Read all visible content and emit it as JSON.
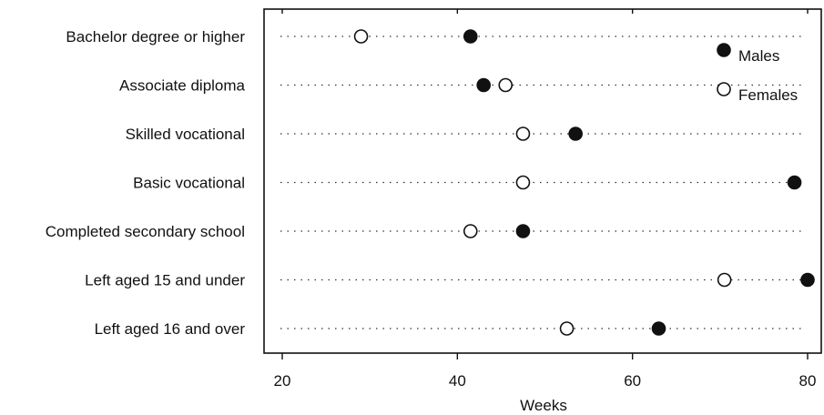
{
  "chart_data": {
    "type": "scatter",
    "title": "",
    "xlabel": "Weeks",
    "ylabel": "",
    "xlim": [
      18,
      82
    ],
    "xticks": [
      20,
      40,
      60,
      80
    ],
    "categories": [
      "Bachelor degree or higher",
      "Associate diploma",
      "Skilled vocational",
      "Basic vocational",
      "Completed secondary school",
      "Left aged 15 and under",
      "Left aged 16 and over"
    ],
    "series": [
      {
        "name": "Males",
        "marker": "filled-circle",
        "values": [
          41.5,
          43.0,
          53.5,
          78.5,
          47.5,
          80.0,
          63.0
        ]
      },
      {
        "name": "Females",
        "marker": "open-circle",
        "values": [
          29.0,
          45.5,
          47.5,
          47.5,
          41.5,
          70.5,
          52.5
        ]
      }
    ],
    "grid": "dotted-rows",
    "legend": {
      "position": "top-right",
      "entries": [
        "Males",
        "Females"
      ]
    }
  },
  "colors": {
    "ink": "#111111",
    "background": "#ffffff"
  }
}
